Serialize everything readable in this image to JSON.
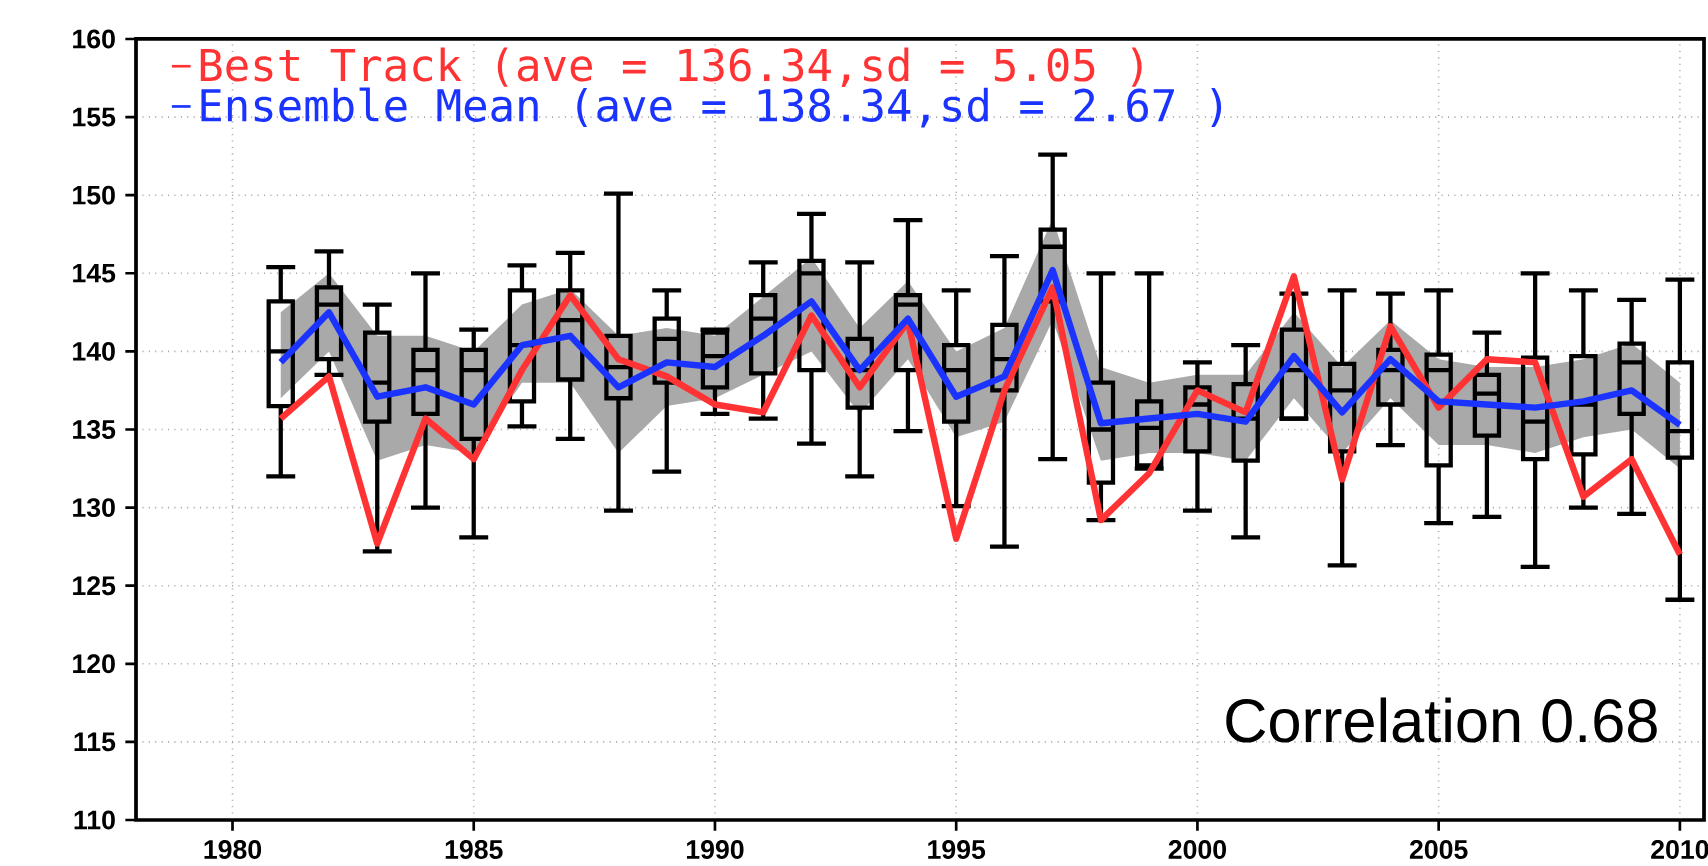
{
  "chart_data": {
    "type": "box",
    "x": [
      1981,
      1982,
      1983,
      1984,
      1985,
      1986,
      1987,
      1988,
      1989,
      1990,
      1991,
      1992,
      1993,
      1994,
      1995,
      1996,
      1997,
      1998,
      1999,
      2000,
      2001,
      2002,
      2003,
      2004,
      2005,
      2006,
      2007,
      2008,
      2009,
      2010
    ],
    "xlim": [
      1978,
      2010.5
    ],
    "ylim": [
      110,
      160
    ],
    "xticks": [
      1980,
      1985,
      1990,
      1995,
      2000,
      2005,
      2010
    ],
    "yticks": [
      110,
      115,
      120,
      125,
      130,
      135,
      140,
      145,
      150,
      155,
      160
    ],
    "grid": true,
    "legend": "top left",
    "annotations": [
      "Correlation   0.68"
    ],
    "series": [
      {
        "color": "#000000",
        "boxes": [
          {
            "low": 132.0,
            "q1": 136.5,
            "median": 140.0,
            "q3": 143.2,
            "high": 145.4
          },
          {
            "low": 138.5,
            "q1": 139.5,
            "median": 143.0,
            "q3": 144.1,
            "high": 146.4
          },
          {
            "low": 127.2,
            "q1": 135.5,
            "median": 138.0,
            "q3": 141.2,
            "high": 143.0
          },
          {
            "low": 130.0,
            "q1": 136.0,
            "median": 138.8,
            "q3": 140.1,
            "high": 145.0
          },
          {
            "low": 128.1,
            "q1": 134.4,
            "median": 138.8,
            "q3": 140.1,
            "high": 141.4
          },
          {
            "low": 135.2,
            "q1": 136.8,
            "median": 140.4,
            "q3": 143.9,
            "high": 145.5
          },
          {
            "low": 134.4,
            "q1": 138.2,
            "median": 142.0,
            "q3": 143.9,
            "high": 146.3
          },
          {
            "low": 129.8,
            "q1": 137.0,
            "median": 139.0,
            "q3": 141.0,
            "high": 150.1
          },
          {
            "low": 132.3,
            "q1": 138.0,
            "median": 140.8,
            "q3": 142.1,
            "high": 143.9
          },
          {
            "low": 136.0,
            "q1": 137.7,
            "median": 139.7,
            "q3": 141.2,
            "high": 141.4
          },
          {
            "low": 135.7,
            "q1": 138.6,
            "median": 142.1,
            "q3": 143.6,
            "high": 145.7
          },
          {
            "low": 134.1,
            "q1": 138.8,
            "median": 145.0,
            "q3": 145.8,
            "high": 148.8
          },
          {
            "low": 132.0,
            "q1": 136.4,
            "median": 138.8,
            "q3": 140.8,
            "high": 145.7
          },
          {
            "low": 134.9,
            "q1": 138.8,
            "median": 143.0,
            "q3": 143.6,
            "high": 148.4
          },
          {
            "low": 130.1,
            "q1": 135.5,
            "median": 138.8,
            "q3": 140.4,
            "high": 143.9
          },
          {
            "low": 127.5,
            "q1": 137.5,
            "median": 139.5,
            "q3": 141.7,
            "high": 146.1
          },
          {
            "low": 133.1,
            "q1": 143.2,
            "median": 146.7,
            "q3": 147.8,
            "high": 152.6
          },
          {
            "low": 129.2,
            "q1": 131.6,
            "median": 135.0,
            "q3": 138.0,
            "high": 145.0
          },
          {
            "low": 132.5,
            "q1": 132.7,
            "median": 135.1,
            "q3": 136.8,
            "high": 145.0
          },
          {
            "low": 129.8,
            "q1": 133.6,
            "median": 136.6,
            "q3": 137.7,
            "high": 139.3
          },
          {
            "low": 128.1,
            "q1": 133.0,
            "median": 135.7,
            "q3": 137.9,
            "high": 140.4
          },
          {
            "low": 135.7,
            "q1": 135.7,
            "median": 138.8,
            "q3": 141.4,
            "high": 143.7
          },
          {
            "low": 126.3,
            "q1": 133.6,
            "median": 137.5,
            "q3": 139.2,
            "high": 143.9
          },
          {
            "low": 134.0,
            "q1": 136.6,
            "median": 138.8,
            "q3": 140.1,
            "high": 143.7
          },
          {
            "low": 129.0,
            "q1": 132.7,
            "median": 138.8,
            "q3": 139.8,
            "high": 143.9
          },
          {
            "low": 129.4,
            "q1": 134.6,
            "median": 137.3,
            "q3": 138.5,
            "high": 141.2
          },
          {
            "low": 126.2,
            "q1": 133.1,
            "median": 135.5,
            "q3": 139.6,
            "high": 145.0
          },
          {
            "low": 130.0,
            "q1": 133.4,
            "median": 136.6,
            "q3": 139.7,
            "high": 143.9
          },
          {
            "low": 129.6,
            "q1": 136.0,
            "median": 139.3,
            "q3": 140.5,
            "high": 143.3
          },
          {
            "low": 124.1,
            "q1": 133.2,
            "median": 134.9,
            "q3": 139.3,
            "high": 144.6
          }
        ]
      },
      {
        "type": "line",
        "name": "Best Track (ave = 136.34,sd = 5.05 )",
        "color": "#ff3333",
        "values": [
          135.7,
          138.4,
          127.7,
          135.7,
          133.1,
          138.8,
          143.6,
          139.5,
          138.4,
          136.6,
          136.1,
          142.3,
          137.7,
          141.9,
          128.0,
          137.5,
          144.1,
          129.2,
          132.2,
          137.5,
          136.1,
          144.8,
          131.8,
          141.6,
          136.4,
          139.5,
          139.3,
          130.7,
          133.1,
          127.0
        ]
      },
      {
        "type": "line",
        "name": "Ensemble Mean (ave = 138.34,sd = 2.67 )",
        "color": "#1a33ff",
        "values": [
          139.3,
          142.5,
          137.1,
          137.7,
          136.6,
          140.4,
          141.0,
          137.7,
          139.3,
          139.0,
          141.0,
          143.2,
          138.8,
          142.1,
          137.1,
          138.4,
          145.2,
          135.4,
          135.7,
          136.0,
          135.5,
          139.7,
          136.1,
          139.5,
          136.8,
          136.6,
          136.4,
          136.8,
          137.5,
          135.3
        ],
        "lower": [
          137,
          140,
          133,
          134,
          133.5,
          138,
          138,
          133.5,
          136.5,
          137,
          138.5,
          140,
          136,
          139.5,
          134.5,
          135.5,
          142,
          133,
          133.5,
          133.5,
          133,
          137,
          133.5,
          137,
          134,
          134,
          133.5,
          134.5,
          135,
          132.5
        ],
        "upper": [
          142.5,
          145,
          141,
          141,
          140,
          143,
          144,
          141,
          141.5,
          141,
          143.5,
          146,
          141.5,
          144.5,
          140,
          141.5,
          148.5,
          139,
          138,
          138.5,
          138.5,
          142.5,
          139,
          142,
          139.5,
          139,
          139,
          139.5,
          140.5,
          138
        ]
      }
    ]
  }
}
